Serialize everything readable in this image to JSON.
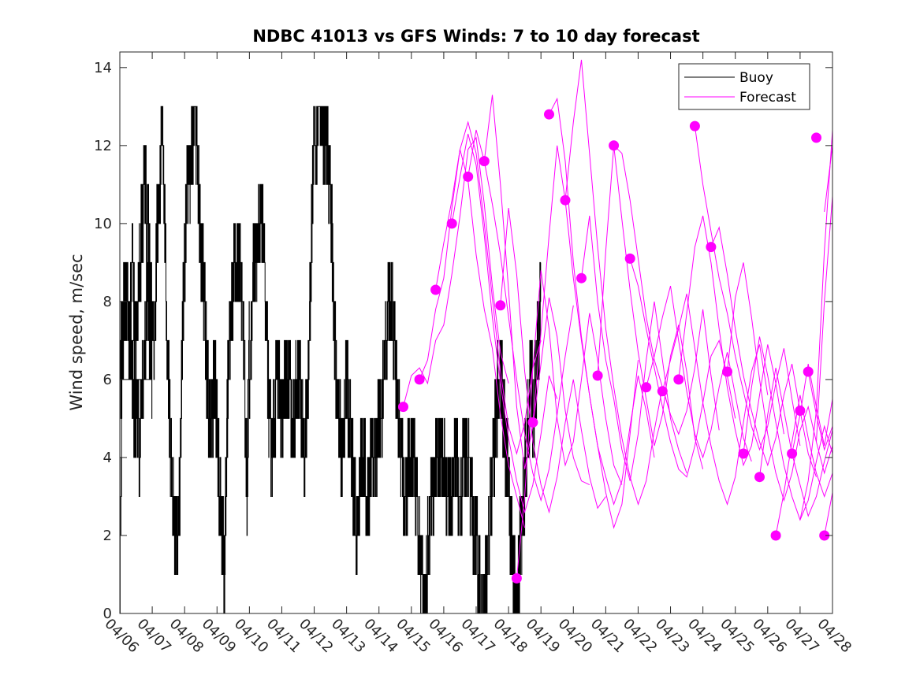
{
  "chart_data": {
    "type": "line",
    "title": "NDBC 41013 vs GFS Winds: 7 to 10 day forecast",
    "xlabel": "",
    "ylabel": "Wind speed, m/sec",
    "xlim": [
      "04/06",
      "04/28"
    ],
    "ylim": [
      0,
      14.4
    ],
    "x_ticks": [
      "04/06",
      "04/07",
      "04/08",
      "04/09",
      "04/10",
      "04/11",
      "04/12",
      "04/13",
      "04/14",
      "04/15",
      "04/16",
      "04/17",
      "04/18",
      "04/19",
      "04/20",
      "04/21",
      "04/22",
      "04/23",
      "04/24",
      "04/25",
      "04/26",
      "04/27",
      "04/28"
    ],
    "y_ticks": [
      0,
      2,
      4,
      6,
      8,
      10,
      12,
      14
    ],
    "grid": false,
    "legend": {
      "placement": "top-right",
      "entries": [
        "Buoy",
        "Forecast"
      ]
    },
    "colors": {
      "buoy": "#000000",
      "forecast": "#ff00ff"
    },
    "buoy_day_shapes": [
      [
        0,
        0,
        7,
        8,
        8,
        7,
        6,
        5,
        5,
        4,
        6,
        7,
        8,
        7,
        6
      ],
      [
        0,
        6,
        7,
        8,
        8,
        7,
        9,
        7,
        7,
        9,
        10,
        11,
        10,
        9,
        7
      ],
      [
        1,
        7,
        7,
        10,
        11,
        12,
        10,
        7,
        5,
        3,
        2,
        2,
        3,
        7,
        9
      ],
      [
        2,
        9,
        11,
        11,
        12,
        13,
        12,
        10,
        9,
        8,
        6,
        5,
        5,
        6,
        5
      ],
      [
        3,
        5,
        3,
        2,
        1,
        5,
        7,
        8,
        9,
        9,
        9,
        8,
        6,
        3,
        7
      ],
      [
        4,
        5,
        8,
        9,
        9,
        10,
        10,
        9,
        7,
        5,
        4,
        5,
        6,
        6,
        5
      ],
      [
        5,
        5,
        6,
        6,
        6,
        5,
        5,
        6,
        6,
        5,
        4,
        5,
        7,
        10,
        12
      ],
      [
        6,
        12,
        12,
        13,
        13,
        12,
        12,
        11,
        10,
        7,
        6,
        5,
        4,
        5,
        6
      ],
      [
        7,
        6,
        5,
        4,
        3,
        2,
        3,
        4,
        4,
        3,
        3,
        4,
        4,
        4,
        5
      ],
      [
        8,
        5,
        5,
        6,
        7,
        8,
        8,
        7,
        6,
        5,
        4,
        3,
        3,
        4,
        4
      ],
      [
        9,
        4,
        4,
        3,
        2,
        1,
        0,
        1,
        2,
        3,
        3,
        4,
        4,
        4,
        4
      ],
      [
        10,
        4,
        3,
        3,
        3,
        4,
        4,
        3,
        3,
        4,
        4,
        4,
        3,
        2,
        2
      ],
      [
        11,
        2,
        1,
        0,
        0,
        1,
        2,
        3,
        4,
        5,
        6,
        6,
        5,
        4,
        4
      ],
      [
        12,
        3,
        2,
        1,
        0,
        1,
        2,
        3,
        4,
        5,
        6,
        5,
        6,
        7,
        8
      ]
    ],
    "forecast_runs": [
      {
        "x": [
          8.75,
          9.0,
          9.25,
          9.5,
          9.75,
          10.0,
          10.25,
          10.5,
          10.75,
          11.0,
          11.25,
          11.5,
          11.75,
          12.0
        ],
        "y": [
          5.3,
          6.1,
          6.3,
          5.9,
          7.0,
          7.4,
          8.7,
          10.2,
          11.9,
          12.2,
          10.5,
          8.4,
          6.7,
          5.9
        ]
      },
      {
        "x": [
          9.25,
          9.5,
          9.75,
          10.0,
          10.25,
          10.5,
          10.75,
          11.0,
          11.25,
          11.5,
          11.75,
          12.0,
          12.25,
          12.5
        ],
        "y": [
          6.0,
          6.5,
          7.8,
          8.6,
          10.4,
          11.9,
          11.1,
          9.2,
          7.8,
          6.8,
          5.1,
          3.8,
          3.0,
          2.2
        ]
      },
      {
        "x": [
          9.75,
          10.0,
          10.25,
          10.5,
          10.75,
          11.0,
          11.25,
          11.5,
          11.75,
          12.0,
          12.25,
          12.5,
          12.75,
          13.0
        ],
        "y": [
          8.3,
          9.5,
          10.6,
          11.9,
          12.6,
          11.8,
          10.0,
          8.1,
          6.2,
          4.8,
          4.1,
          4.9,
          6.3,
          7.0
        ]
      },
      {
        "x": [
          10.25,
          10.5,
          10.75,
          11.0,
          11.25,
          11.5,
          11.75,
          12.0,
          12.25,
          12.5,
          12.75,
          13.0,
          13.25,
          13.5
        ],
        "y": [
          10.0,
          11.2,
          12.3,
          11.5,
          9.7,
          7.6,
          5.9,
          4.5,
          3.4,
          2.6,
          3.3,
          4.6,
          6.1,
          5.5
        ]
      },
      {
        "x": [
          10.75,
          11.0,
          11.25,
          11.5,
          11.75,
          12.0,
          12.25,
          12.5,
          12.75,
          13.0,
          13.25,
          13.5,
          13.75,
          14.0
        ],
        "y": [
          11.2,
          12.4,
          11.6,
          10.5,
          9.2,
          7.6,
          6.0,
          4.6,
          3.6,
          2.9,
          3.7,
          5.1,
          6.6,
          7.9
        ]
      },
      {
        "x": [
          11.25,
          11.5,
          11.75,
          12.0,
          12.25,
          12.5,
          12.75,
          13.0,
          13.25,
          13.5,
          13.75,
          14.0,
          14.25,
          14.5
        ],
        "y": [
          11.6,
          13.3,
          11.0,
          8.3,
          5.3,
          3.7,
          4.8,
          6.4,
          8.1,
          7.1,
          5.2,
          4.0,
          3.4,
          3.3
        ]
      },
      {
        "x": [
          11.75,
          12.0,
          12.25,
          12.5,
          12.75,
          13.0,
          13.25,
          13.5,
          13.75,
          14.0,
          14.25,
          14.5,
          14.75,
          15.0
        ],
        "y": [
          7.9,
          10.4,
          8.7,
          6.2,
          4.4,
          3.3,
          2.6,
          3.5,
          4.9,
          6.0,
          4.7,
          3.5,
          2.7,
          3.0
        ]
      },
      {
        "x": [
          12.25,
          12.5,
          12.75,
          13.0,
          13.25,
          13.5,
          13.75,
          14.0,
          14.25,
          14.5,
          14.75,
          15.0,
          15.25,
          15.5
        ],
        "y": [
          0.9,
          3.0,
          6.3,
          8.8,
          7.3,
          5.0,
          3.8,
          4.4,
          6.0,
          7.7,
          6.5,
          5.0,
          3.8,
          3.3
        ]
      },
      {
        "x": [
          12.75,
          13.0,
          13.25,
          13.5,
          13.75,
          14.0,
          14.25,
          14.5,
          14.75,
          15.0,
          15.25,
          15.5,
          15.75,
          16.0
        ],
        "y": [
          4.9,
          7.2,
          9.7,
          12.0,
          10.6,
          8.6,
          7.0,
          5.6,
          4.3,
          3.1,
          2.2,
          2.8,
          4.6,
          6.5
        ]
      },
      {
        "x": [
          13.25,
          13.5,
          13.75,
          14.0,
          14.25,
          14.5,
          14.75,
          15.0,
          15.25,
          15.5,
          15.75,
          16.0,
          16.25,
          16.5
        ],
        "y": [
          12.8,
          13.2,
          11.6,
          9.0,
          7.1,
          5.6,
          4.3,
          3.5,
          2.8,
          3.4,
          4.8,
          6.1,
          5.2,
          4.0
        ]
      },
      {
        "x": [
          13.75,
          14.0,
          14.25,
          14.5,
          14.75,
          15.0,
          15.25,
          15.5,
          15.75,
          16.0,
          16.25,
          16.5,
          16.75,
          17.0
        ],
        "y": [
          10.6,
          12.6,
          14.2,
          11.8,
          9.4,
          7.3,
          5.8,
          4.5,
          3.5,
          2.8,
          3.4,
          4.7,
          5.8,
          5.1
        ]
      },
      {
        "x": [
          14.25,
          14.5,
          14.75,
          15.0,
          15.25,
          15.5,
          15.75,
          16.0,
          16.25,
          16.5,
          16.75,
          17.0,
          17.25,
          17.5
        ],
        "y": [
          8.6,
          10.2,
          8.0,
          6.5,
          5.5,
          4.2,
          3.4,
          4.6,
          6.5,
          8.0,
          6.5,
          5.0,
          4.2,
          3.6
        ]
      },
      {
        "x": [
          14.75,
          15.0,
          15.25,
          15.5,
          15.75,
          16.0,
          16.25,
          16.5,
          16.75,
          17.0,
          17.25,
          17.5,
          17.75,
          18.0
        ],
        "y": [
          6.1,
          9.3,
          12.0,
          10.1,
          8.3,
          6.7,
          5.5,
          4.3,
          5.1,
          6.6,
          7.4,
          6.2,
          4.5,
          3.7
        ]
      },
      {
        "x": [
          15.25,
          15.5,
          15.75,
          16.0,
          16.25,
          16.5,
          16.75,
          17.0,
          17.25,
          17.5,
          17.75,
          18.0,
          18.25,
          18.5
        ],
        "y": [
          12.0,
          11.8,
          10.6,
          9.1,
          7.6,
          6.5,
          5.8,
          5.1,
          4.6,
          5.2,
          6.3,
          7.8,
          6.1,
          4.7
        ]
      },
      {
        "x": [
          15.75,
          16.0,
          16.25,
          16.5,
          16.75,
          17.0,
          17.25,
          17.5,
          17.75,
          18.0,
          18.25,
          18.5,
          18.75,
          19.0
        ],
        "y": [
          9.1,
          8.4,
          7.3,
          6.3,
          5.3,
          4.4,
          3.7,
          3.5,
          4.3,
          5.4,
          6.6,
          7.0,
          6.1,
          5.0
        ]
      },
      {
        "x": [
          16.25,
          16.5,
          16.75,
          17.0,
          17.25,
          17.5,
          17.75,
          18.0,
          18.25,
          18.5,
          18.75,
          19.0,
          19.25,
          19.5
        ],
        "y": [
          5.8,
          6.6,
          7.6,
          8.4,
          7.0,
          5.7,
          4.6,
          4.0,
          4.7,
          5.8,
          6.7,
          5.6,
          4.5,
          3.9
        ]
      },
      {
        "x": [
          16.75,
          17.0,
          17.25,
          17.5,
          17.75,
          18.0,
          18.25,
          18.5,
          18.75,
          19.0,
          19.25,
          19.5,
          19.75,
          20.0
        ],
        "y": [
          5.7,
          6.5,
          7.3,
          8.2,
          6.8,
          5.4,
          4.3,
          3.4,
          2.8,
          3.5,
          4.9,
          6.2,
          6.9,
          5.6
        ]
      },
      {
        "x": [
          17.25,
          17.5,
          17.75,
          18.0,
          18.25,
          18.5,
          18.75,
          19.0,
          19.25,
          19.5,
          19.75,
          20.0,
          20.25,
          20.5
        ],
        "y": [
          6.0,
          7.7,
          9.4,
          10.2,
          9.0,
          7.3,
          5.8,
          4.7,
          3.8,
          4.3,
          5.6,
          6.9,
          5.9,
          4.6
        ]
      },
      {
        "x": [
          17.75,
          18.0,
          18.25,
          18.5,
          18.75,
          19.0,
          19.25,
          19.5,
          19.75,
          20.0,
          20.25,
          20.5,
          20.75,
          21.0
        ],
        "y": [
          12.5,
          11.0,
          9.8,
          8.6,
          7.7,
          6.6,
          5.7,
          4.8,
          4.2,
          4.8,
          5.9,
          6.8,
          5.5,
          4.3
        ]
      },
      {
        "x": [
          18.25,
          18.5,
          18.75,
          19.0,
          19.25,
          19.5,
          19.75,
          20.0,
          20.25,
          20.5,
          20.75,
          21.0,
          21.25,
          21.5
        ],
        "y": [
          9.4,
          9.9,
          8.7,
          7.3,
          6.1,
          5.2,
          4.4,
          3.8,
          4.5,
          5.6,
          6.4,
          5.2,
          4.1,
          3.5
        ]
      },
      {
        "x": [
          18.75,
          19.0,
          19.25,
          19.5,
          19.75,
          20.0,
          20.25,
          20.5,
          20.75,
          21.0,
          21.25,
          21.5,
          21.75,
          22.0
        ],
        "y": [
          6.2,
          8.1,
          9.0,
          7.6,
          6.0,
          4.6,
          3.6,
          2.9,
          3.6,
          4.7,
          5.3,
          4.4,
          3.6,
          4.3
        ]
      },
      {
        "x": [
          19.25,
          19.5,
          19.75,
          20.0,
          20.25,
          20.5,
          20.75,
          21.0,
          21.25,
          21.5,
          21.75,
          22.0
        ],
        "y": [
          4.1,
          5.8,
          7.1,
          6.1,
          4.9,
          3.8,
          3.0,
          2.4,
          2.9,
          3.9,
          4.8,
          4.1
        ]
      },
      {
        "x": [
          19.75,
          20.0,
          20.25,
          20.5,
          20.75,
          21.0,
          21.25,
          21.5,
          21.75,
          22.0
        ],
        "y": [
          3.5,
          5.1,
          6.3,
          5.2,
          4.1,
          3.3,
          2.5,
          3.0,
          3.9,
          4.7
        ]
      },
      {
        "x": [
          20.25,
          20.5,
          20.75,
          21.0,
          21.25,
          21.5,
          21.75,
          22.0
        ],
        "y": [
          2.0,
          3.1,
          4.4,
          5.6,
          4.5,
          3.6,
          3.0,
          3.6
        ]
      },
      {
        "x": [
          20.75,
          21.0,
          21.25,
          21.5,
          21.75,
          22.0
        ],
        "y": [
          4.1,
          5.1,
          6.4,
          5.3,
          4.3,
          5.5
        ]
      },
      {
        "x": [
          21.25,
          21.5,
          21.75,
          22.0
        ],
        "y": [
          6.2,
          5.1,
          4.2,
          4.8
        ]
      },
      {
        "x": [
          21.75,
          22.0
        ],
        "y": [
          2.0,
          3.1
        ]
      },
      {
        "x": [
          21.0,
          21.25,
          21.5,
          21.75,
          22.0
        ],
        "y": [
          2.4,
          3.4,
          5.2,
          9.3,
          12.4
        ]
      },
      {
        "x": [
          21.5,
          21.75,
          22.0
        ],
        "y": [
          4.4,
          8.0,
          10.7
        ]
      },
      {
        "x": [
          21.75,
          22.0
        ],
        "y": [
          10.3,
          12.0
        ]
      }
    ],
    "forecast_markers": [
      {
        "x": 8.75,
        "y": 5.3
      },
      {
        "x": 9.25,
        "y": 6.0
      },
      {
        "x": 9.75,
        "y": 8.3
      },
      {
        "x": 10.25,
        "y": 10.0
      },
      {
        "x": 10.75,
        "y": 11.2
      },
      {
        "x": 11.25,
        "y": 11.6
      },
      {
        "x": 11.75,
        "y": 7.9
      },
      {
        "x": 12.25,
        "y": 0.9
      },
      {
        "x": 12.75,
        "y": 4.9
      },
      {
        "x": 13.25,
        "y": 12.8
      },
      {
        "x": 13.75,
        "y": 10.6
      },
      {
        "x": 14.25,
        "y": 8.6
      },
      {
        "x": 14.75,
        "y": 6.1
      },
      {
        "x": 15.25,
        "y": 12.0
      },
      {
        "x": 15.75,
        "y": 9.1
      },
      {
        "x": 16.25,
        "y": 5.8
      },
      {
        "x": 16.75,
        "y": 5.7
      },
      {
        "x": 17.25,
        "y": 6.0
      },
      {
        "x": 17.75,
        "y": 12.5
      },
      {
        "x": 18.25,
        "y": 9.4
      },
      {
        "x": 18.75,
        "y": 6.2
      },
      {
        "x": 19.25,
        "y": 4.1
      },
      {
        "x": 19.75,
        "y": 3.5
      },
      {
        "x": 20.25,
        "y": 2.0
      },
      {
        "x": 20.75,
        "y": 4.1
      },
      {
        "x": 21.25,
        "y": 6.2
      },
      {
        "x": 21.75,
        "y": 2.0
      },
      {
        "x": 21.0,
        "y": 5.2
      },
      {
        "x": 21.5,
        "y": 12.2
      }
    ]
  }
}
